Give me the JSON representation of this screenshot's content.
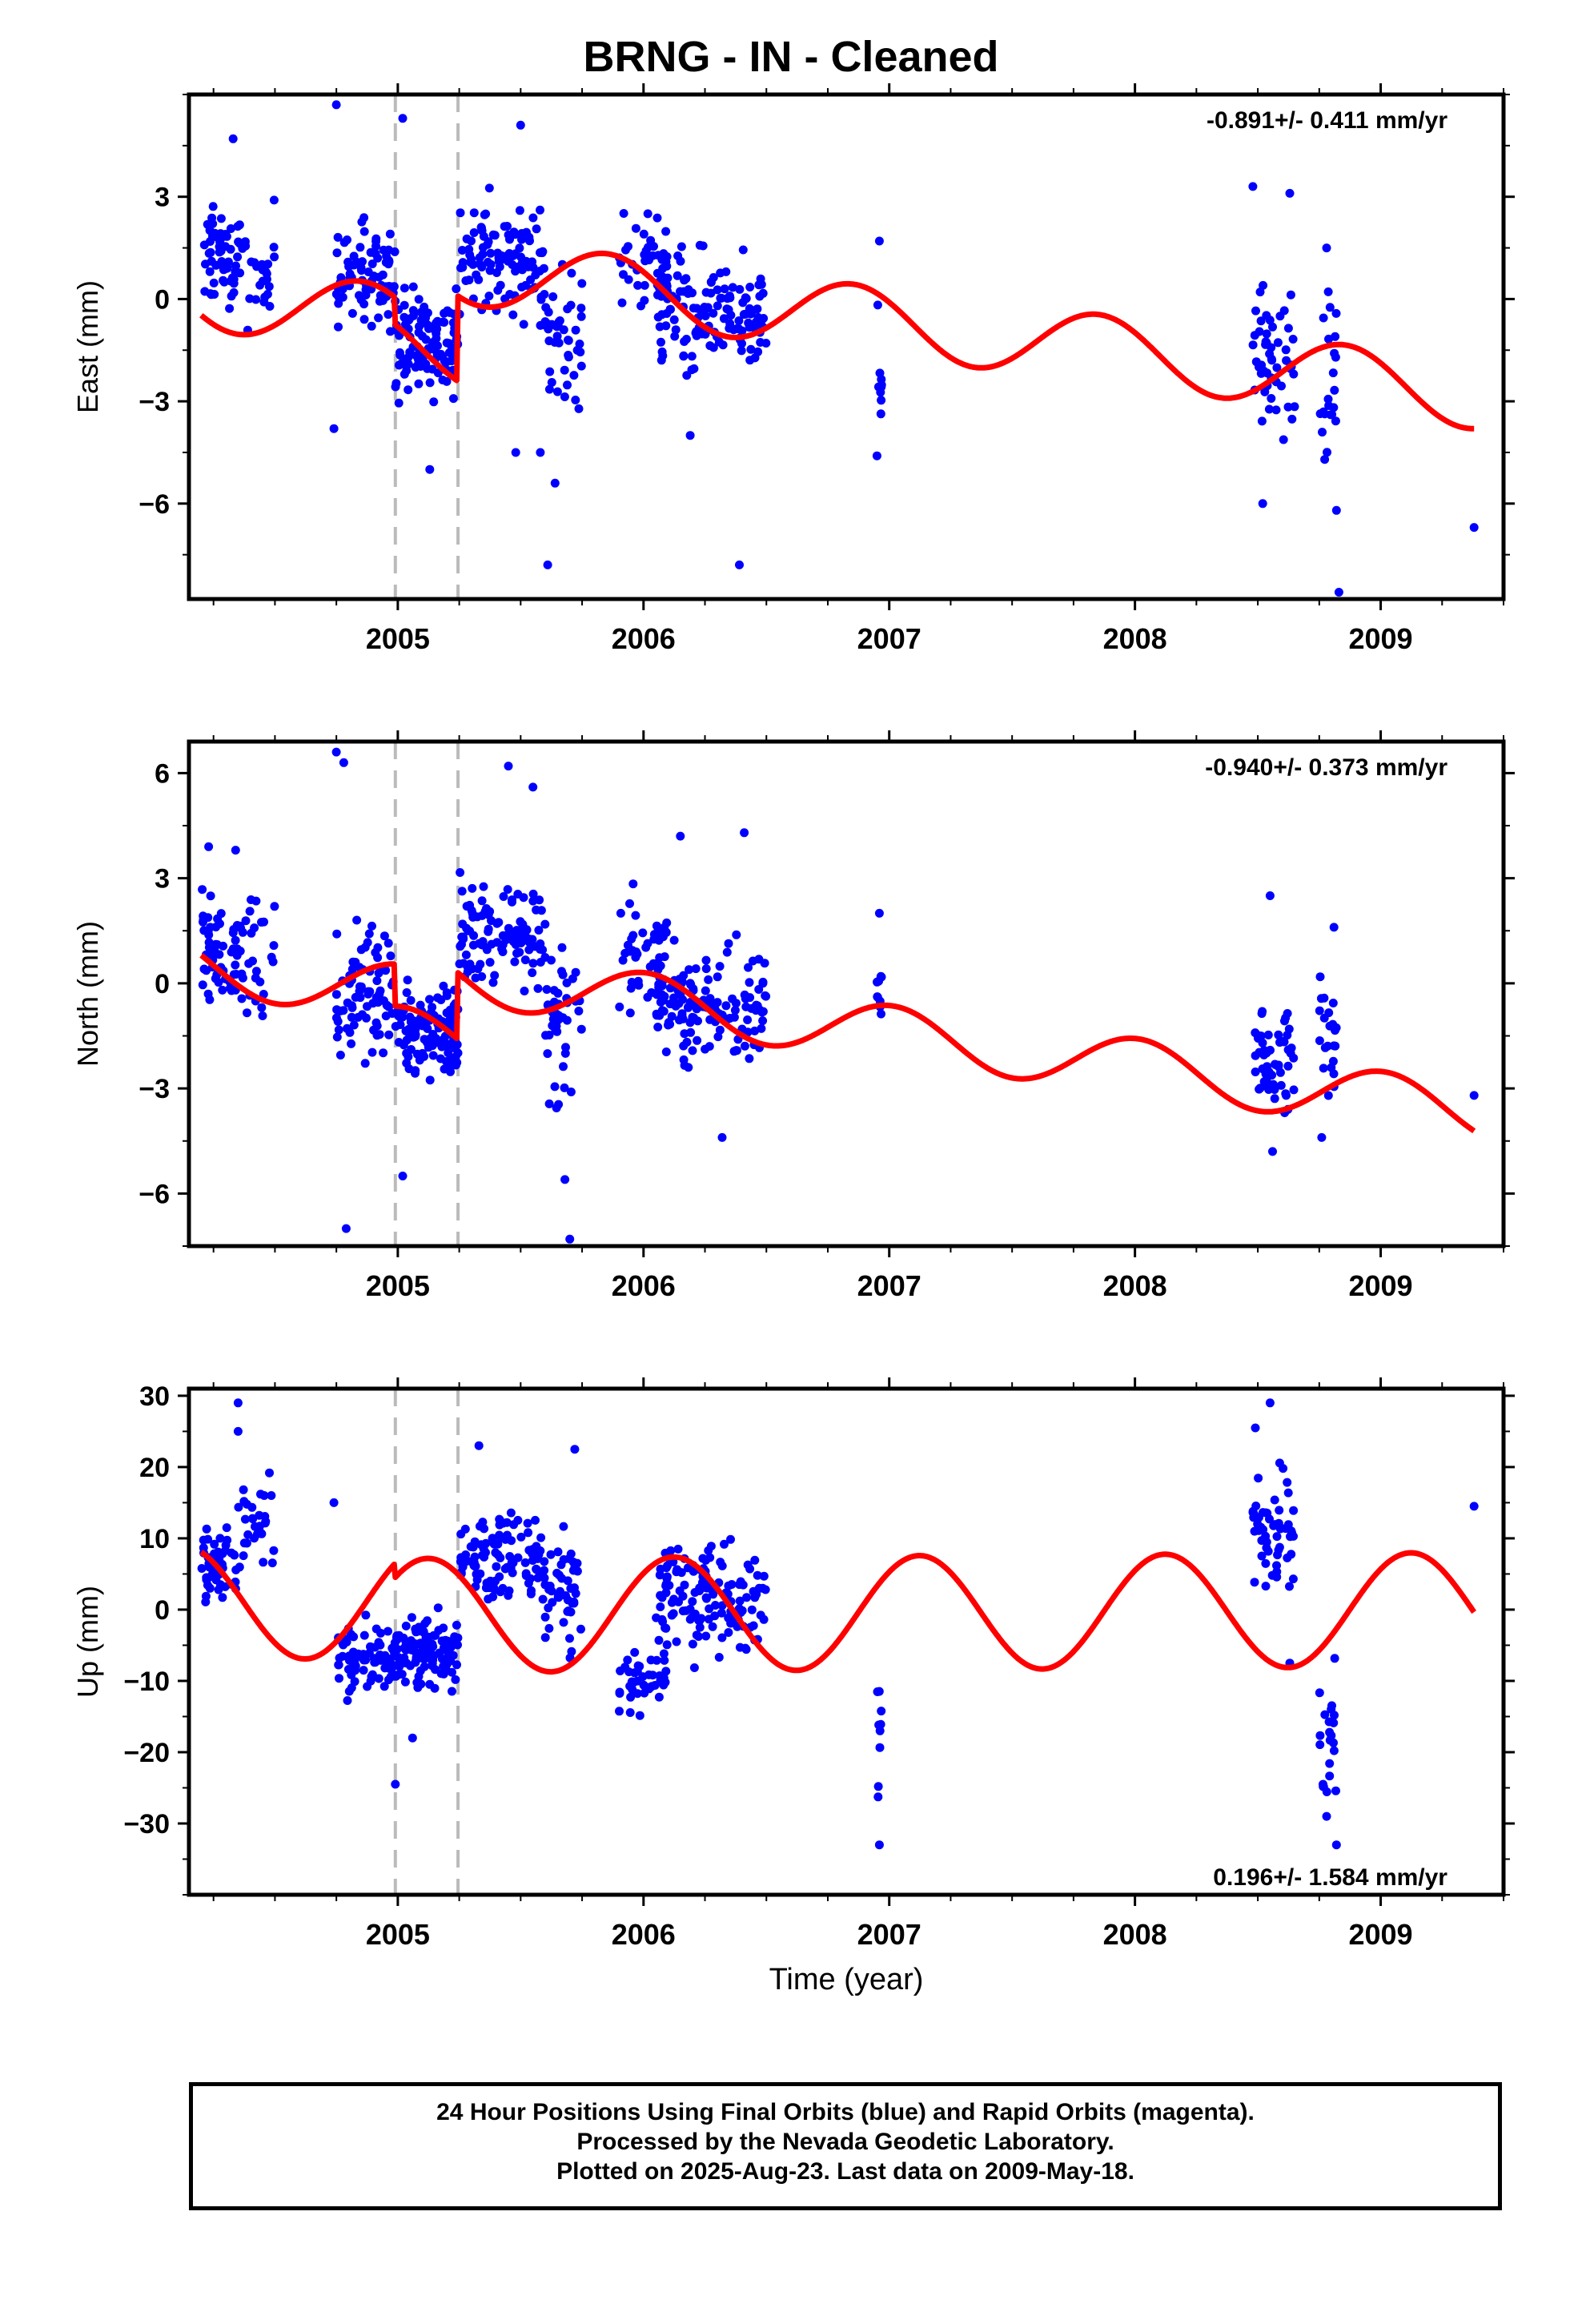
{
  "title": "BRNG  - IN - Cleaned",
  "caption": {
    "line1": "24 Hour Positions Using Final Orbits (blue) and Rapid Orbits (magenta).",
    "line2": "Processed by the Nevada Geodetic Laboratory.",
    "line3": "Plotted on 2025-Aug-23. Last data on 2009-May-18."
  },
  "colors": {
    "data": "#0000ff",
    "model": "#ff0000",
    "offset_line": "#bbbbbb"
  },
  "offsets": [
    2004.99,
    2005.245
  ],
  "chart_data": [
    {
      "type": "scatter",
      "ylabel": "East (mm)",
      "rate": "-0.891+/- 0.411 mm/yr",
      "rate_position": "top-right",
      "xlim": [
        2004.15,
        2009.5
      ],
      "ylim": [
        -8.8,
        6.0
      ],
      "yticks": [
        3,
        0,
        -3,
        -6
      ],
      "ytick_labels": [
        "3",
        "0",
        "−3",
        "−6"
      ],
      "xticks": [
        2005,
        2006,
        2007,
        2008,
        2009
      ],
      "xtick_labels": [
        "2005",
        "2006",
        "2007",
        "2008",
        "2009"
      ],
      "model": {
        "intercept": 0.1,
        "slope": -0.891,
        "amp": 1.0,
        "phase": 2.5,
        "offsets": [
          -0.8,
          2.5
        ]
      },
      "clusters": [
        {
          "x": [
            2004.2,
            2004.35
          ],
          "y": 1.2,
          "s": 1.2,
          "n": 55
        },
        {
          "x": [
            2004.35,
            2004.5
          ],
          "y": 1.0,
          "s": 1.5,
          "n": 30
        },
        {
          "x": [
            2004.75,
            2004.99
          ],
          "y": 0.7,
          "s": 1.3,
          "n": 80
        },
        {
          "x": [
            2004.99,
            2005.245
          ],
          "y": -1.3,
          "s": 1.4,
          "n": 120
        },
        {
          "x": [
            2005.25,
            2005.6
          ],
          "y": 1.2,
          "s": 1.4,
          "n": 110
        },
        {
          "x": [
            2005.6,
            2005.75
          ],
          "y": -1.2,
          "s": 1.8,
          "n": 45
        },
        {
          "x": [
            2005.9,
            2006.1
          ],
          "y": 1.0,
          "s": 1.3,
          "n": 45
        },
        {
          "x": [
            2006.05,
            2006.5
          ],
          "y": -0.5,
          "s": 1.5,
          "n": 140
        },
        {
          "x": [
            2006.95,
            2006.97
          ],
          "y": -2.0,
          "s": 2.0,
          "n": 9
        },
        {
          "x": [
            2008.48,
            2008.65
          ],
          "y": -1.8,
          "s": 1.8,
          "n": 55
        },
        {
          "x": [
            2008.75,
            2008.82
          ],
          "y": -2.5,
          "s": 2.0,
          "n": 22
        }
      ],
      "points": [
        {
          "x": 2004.75,
          "y": 5.7
        },
        {
          "x": 2005.02,
          "y": 5.3
        },
        {
          "x": 2005.5,
          "y": 5.1
        },
        {
          "x": 2004.33,
          "y": 4.7
        },
        {
          "x": 2004.74,
          "y": -3.8
        },
        {
          "x": 2005.58,
          "y": -4.5
        },
        {
          "x": 2005.48,
          "y": -4.5
        },
        {
          "x": 2005.61,
          "y": -7.8
        },
        {
          "x": 2006.39,
          "y": -7.8
        },
        {
          "x": 2005.64,
          "y": -5.4
        },
        {
          "x": 2005.13,
          "y": -5.0
        },
        {
          "x": 2006.19,
          "y": -4.0
        },
        {
          "x": 2006.96,
          "y": 1.7
        },
        {
          "x": 2006.95,
          "y": -4.6
        },
        {
          "x": 2008.48,
          "y": 3.3
        },
        {
          "x": 2008.63,
          "y": 3.1
        },
        {
          "x": 2008.52,
          "y": -6.0
        },
        {
          "x": 2008.83,
          "y": -8.6
        },
        {
          "x": 2008.82,
          "y": -6.2
        },
        {
          "x": 2009.38,
          "y": -6.7
        },
        {
          "x": 2008.78,
          "y": 1.5
        }
      ]
    },
    {
      "type": "scatter",
      "ylabel": "North (mm)",
      "rate": "-0.940+/- 0.373 mm/yr",
      "rate_position": "top-right",
      "xlim": [
        2004.15,
        2009.5
      ],
      "ylim": [
        -7.5,
        6.9
      ],
      "yticks": [
        6,
        3,
        0,
        -3,
        -6
      ],
      "ytick_labels": [
        "6",
        "3",
        "0",
        "−3",
        "−6"
      ],
      "xticks": [
        2005,
        2006,
        2007,
        2008,
        2009
      ],
      "xtick_labels": [
        "2005",
        "2006",
        "2007",
        "2008",
        "2009"
      ],
      "model": {
        "intercept": 0.5,
        "slope": -0.94,
        "amp": 0.8,
        "phase": 1.5,
        "offsets": [
          -1.2,
          1.9
        ]
      },
      "clusters": [
        {
          "x": [
            2004.2,
            2004.35
          ],
          "y": 0.9,
          "s": 1.3,
          "n": 55
        },
        {
          "x": [
            2004.35,
            2004.5
          ],
          "y": 0.8,
          "s": 1.6,
          "n": 30
        },
        {
          "x": [
            2004.75,
            2004.99
          ],
          "y": -0.2,
          "s": 1.6,
          "n": 80
        },
        {
          "x": [
            2004.99,
            2005.245
          ],
          "y": -1.3,
          "s": 1.3,
          "n": 120
        },
        {
          "x": [
            2005.25,
            2005.6
          ],
          "y": 1.4,
          "s": 1.4,
          "n": 110
        },
        {
          "x": [
            2005.6,
            2005.75
          ],
          "y": -1.3,
          "s": 2.0,
          "n": 45
        },
        {
          "x": [
            2005.9,
            2006.1
          ],
          "y": 0.9,
          "s": 1.2,
          "n": 45
        },
        {
          "x": [
            2006.05,
            2006.5
          ],
          "y": -0.6,
          "s": 1.3,
          "n": 140
        },
        {
          "x": [
            2006.95,
            2006.97
          ],
          "y": -0.3,
          "s": 0.6,
          "n": 9
        },
        {
          "x": [
            2008.48,
            2008.65
          ],
          "y": -2.0,
          "s": 1.3,
          "n": 55
        },
        {
          "x": [
            2008.75,
            2008.82
          ],
          "y": -1.5,
          "s": 1.6,
          "n": 22
        }
      ],
      "points": [
        {
          "x": 2004.75,
          "y": 6.6
        },
        {
          "x": 2004.78,
          "y": 6.3
        },
        {
          "x": 2005.45,
          "y": 6.2
        },
        {
          "x": 2005.55,
          "y": 5.6
        },
        {
          "x": 2004.23,
          "y": 3.9
        },
        {
          "x": 2004.34,
          "y": 3.8
        },
        {
          "x": 2004.79,
          "y": -7.0
        },
        {
          "x": 2005.7,
          "y": -7.3
        },
        {
          "x": 2005.68,
          "y": -5.6
        },
        {
          "x": 2005.02,
          "y": -5.5
        },
        {
          "x": 2006.15,
          "y": 4.2
        },
        {
          "x": 2006.41,
          "y": 4.3
        },
        {
          "x": 2006.32,
          "y": -4.4
        },
        {
          "x": 2006.96,
          "y": 2.0
        },
        {
          "x": 2008.55,
          "y": 2.5
        },
        {
          "x": 2008.81,
          "y": 1.6
        },
        {
          "x": 2008.56,
          "y": -4.8
        },
        {
          "x": 2008.76,
          "y": -4.4
        },
        {
          "x": 2009.38,
          "y": -3.2
        }
      ]
    },
    {
      "type": "scatter",
      "ylabel": "Up (mm)",
      "xlabel": "Time (year)",
      "rate": "0.196+/- 1.584 mm/yr",
      "rate_position": "bottom-right",
      "xlim": [
        2004.15,
        2009.5
      ],
      "ylim": [
        -40,
        31
      ],
      "yticks": [
        30,
        20,
        10,
        0,
        -10,
        -20,
        -30
      ],
      "ytick_labels": [
        "30",
        "20",
        "10",
        "0",
        "−10",
        "−20",
        "−30"
      ],
      "xticks": [
        2005,
        2006,
        2007,
        2008,
        2009
      ],
      "xtick_labels": [
        "2005",
        "2006",
        "2007",
        "2008",
        "2009"
      ],
      "model": {
        "intercept": 1.0,
        "slope": 0.196,
        "amp": 8.0,
        "phase": 0.8,
        "offsets": [
          -2.0,
          0
        ]
      },
      "clusters": [
        {
          "x": [
            2004.2,
            2004.35
          ],
          "y": 6,
          "s": 5,
          "n": 55
        },
        {
          "x": [
            2004.35,
            2004.5
          ],
          "y": 11,
          "s": 6,
          "n": 30
        },
        {
          "x": [
            2004.75,
            2004.99
          ],
          "y": -7,
          "s": 4,
          "n": 80
        },
        {
          "x": [
            2004.99,
            2005.245
          ],
          "y": -6,
          "s": 4,
          "n": 120
        },
        {
          "x": [
            2005.25,
            2005.6
          ],
          "y": 7,
          "s": 6,
          "n": 110
        },
        {
          "x": [
            2005.6,
            2005.75
          ],
          "y": 3,
          "s": 7,
          "n": 45
        },
        {
          "x": [
            2005.9,
            2006.1
          ],
          "y": -10,
          "s": 4,
          "n": 45
        },
        {
          "x": [
            2006.05,
            2006.5
          ],
          "y": 2,
          "s": 7,
          "n": 140
        },
        {
          "x": [
            2006.95,
            2006.97
          ],
          "y": -18,
          "s": 7,
          "n": 9
        },
        {
          "x": [
            2008.48,
            2008.65
          ],
          "y": 10,
          "s": 7,
          "n": 55
        },
        {
          "x": [
            2008.75,
            2008.82
          ],
          "y": -16,
          "s": 10,
          "n": 22
        }
      ],
      "points": [
        {
          "x": 2004.35,
          "y": 29
        },
        {
          "x": 2004.35,
          "y": 25
        },
        {
          "x": 2004.74,
          "y": 15
        },
        {
          "x": 2004.99,
          "y": -24.5
        },
        {
          "x": 2005.06,
          "y": -18
        },
        {
          "x": 2005.33,
          "y": 23
        },
        {
          "x": 2005.72,
          "y": 22.5
        },
        {
          "x": 2006.96,
          "y": -33
        },
        {
          "x": 2008.55,
          "y": 29
        },
        {
          "x": 2008.49,
          "y": 25.5
        },
        {
          "x": 2008.82,
          "y": -33
        },
        {
          "x": 2008.78,
          "y": -29
        },
        {
          "x": 2008.63,
          "y": -7.5
        },
        {
          "x": 2009.38,
          "y": 14.5
        }
      ]
    }
  ]
}
